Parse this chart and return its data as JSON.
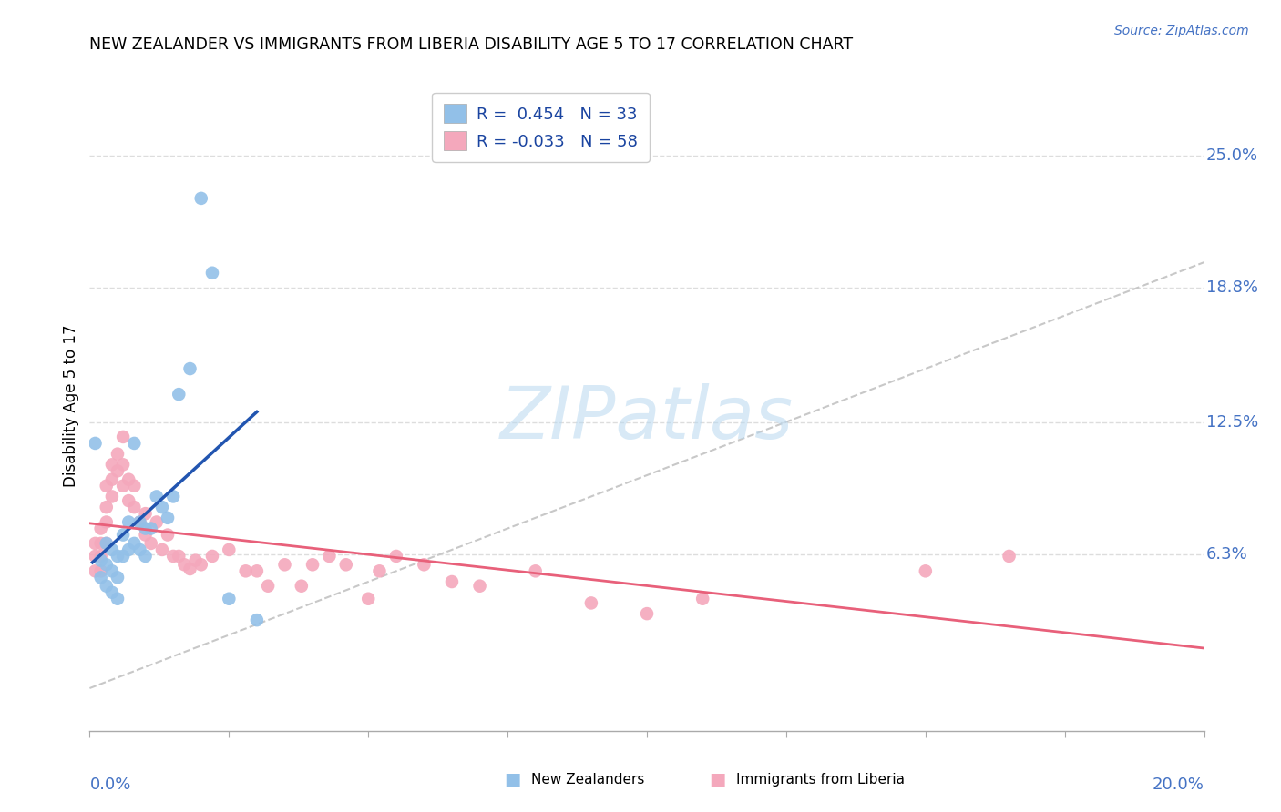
{
  "title": "NEW ZEALANDER VS IMMIGRANTS FROM LIBERIA DISABILITY AGE 5 TO 17 CORRELATION CHART",
  "source": "Source: ZipAtlas.com",
  "ylabel": "Disability Age 5 to 17",
  "ytick_labels": [
    "6.3%",
    "12.5%",
    "18.8%",
    "25.0%"
  ],
  "ytick_values": [
    0.063,
    0.125,
    0.188,
    0.25
  ],
  "xtick_labels": [
    "0.0%",
    "",
    "",
    "",
    "",
    "",
    "",
    "",
    "20.0%"
  ],
  "xlim": [
    0.0,
    0.2
  ],
  "ylim": [
    -0.02,
    0.285
  ],
  "legend_r1": "R =  0.454   N = 33",
  "legend_r2": "R = -0.033   N = 58",
  "color_nz": "#92c0e8",
  "color_lib": "#f4a8bc",
  "color_nz_line": "#2255b0",
  "color_lib_line": "#e8607a",
  "color_diagonal": "#c8c8c8",
  "watermark": "ZIPatlas",
  "nz_x": [
    0.001,
    0.002,
    0.002,
    0.003,
    0.003,
    0.003,
    0.004,
    0.004,
    0.004,
    0.005,
    0.005,
    0.005,
    0.006,
    0.006,
    0.007,
    0.007,
    0.008,
    0.008,
    0.009,
    0.009,
    0.01,
    0.01,
    0.011,
    0.012,
    0.013,
    0.014,
    0.015,
    0.016,
    0.018,
    0.02,
    0.022,
    0.025,
    0.03
  ],
  "nz_y": [
    0.115,
    0.06,
    0.052,
    0.068,
    0.058,
    0.048,
    0.065,
    0.055,
    0.045,
    0.062,
    0.052,
    0.042,
    0.072,
    0.062,
    0.078,
    0.065,
    0.115,
    0.068,
    0.078,
    0.065,
    0.075,
    0.062,
    0.075,
    0.09,
    0.085,
    0.08,
    0.09,
    0.138,
    0.15,
    0.23,
    0.195,
    0.042,
    0.032
  ],
  "lib_x": [
    0.001,
    0.001,
    0.001,
    0.002,
    0.002,
    0.002,
    0.002,
    0.003,
    0.003,
    0.003,
    0.003,
    0.004,
    0.004,
    0.004,
    0.005,
    0.005,
    0.006,
    0.006,
    0.006,
    0.007,
    0.007,
    0.008,
    0.008,
    0.009,
    0.01,
    0.01,
    0.011,
    0.012,
    0.013,
    0.014,
    0.015,
    0.016,
    0.017,
    0.018,
    0.019,
    0.02,
    0.022,
    0.025,
    0.028,
    0.03,
    0.032,
    0.035,
    0.038,
    0.04,
    0.043,
    0.046,
    0.05,
    0.052,
    0.055,
    0.06,
    0.065,
    0.07,
    0.08,
    0.09,
    0.1,
    0.11,
    0.15,
    0.165
  ],
  "lib_y": [
    0.068,
    0.062,
    0.055,
    0.075,
    0.068,
    0.062,
    0.055,
    0.095,
    0.085,
    0.078,
    0.068,
    0.105,
    0.098,
    0.09,
    0.11,
    0.102,
    0.118,
    0.105,
    0.095,
    0.098,
    0.088,
    0.095,
    0.085,
    0.078,
    0.082,
    0.072,
    0.068,
    0.078,
    0.065,
    0.072,
    0.062,
    0.062,
    0.058,
    0.056,
    0.06,
    0.058,
    0.062,
    0.065,
    0.055,
    0.055,
    0.048,
    0.058,
    0.048,
    0.058,
    0.062,
    0.058,
    0.042,
    0.055,
    0.062,
    0.058,
    0.05,
    0.048,
    0.055,
    0.04,
    0.035,
    0.042,
    0.055,
    0.062
  ]
}
